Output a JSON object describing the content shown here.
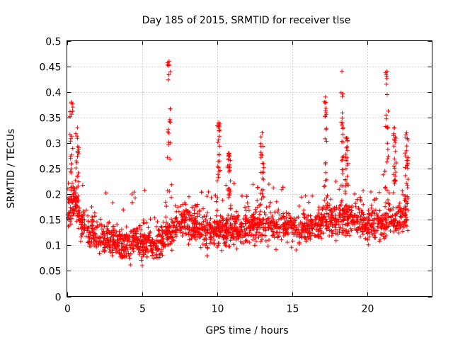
{
  "chart_data": {
    "type": "scatter",
    "title": "Day 185 of 2015, SRMTID for receiver tlse",
    "xlabel": "GPS time / hours",
    "ylabel": "SRMTID / TECUs",
    "xlim": [
      0,
      24.3
    ],
    "ylim": [
      0,
      0.5
    ],
    "x_ticks": [
      "0",
      "5",
      "10",
      "15",
      "20"
    ],
    "x_tick_values": [
      0,
      5,
      10,
      15,
      20
    ],
    "y_ticks": [
      "0",
      "0.05",
      "0.1",
      "0.15",
      "0.2",
      "0.25",
      "0.3",
      "0.35",
      "0.4",
      "0.45",
      "0.5"
    ],
    "y_tick_values": [
      0,
      0.05,
      0.1,
      0.15,
      0.2,
      0.25,
      0.3,
      0.35,
      0.4,
      0.45,
      0.5
    ],
    "grid": true,
    "marker": "+",
    "series_color": "#ff0000",
    "x_range_of_data": [
      0,
      22.7
    ],
    "baseline_values": [
      [
        0.0,
        0.16
      ],
      [
        0.5,
        0.19
      ],
      [
        1.0,
        0.14
      ],
      [
        1.5,
        0.13
      ],
      [
        2.0,
        0.12
      ],
      [
        2.5,
        0.11
      ],
      [
        3.0,
        0.11
      ],
      [
        3.5,
        0.11
      ],
      [
        4.0,
        0.1
      ],
      [
        4.5,
        0.11
      ],
      [
        5.0,
        0.1
      ],
      [
        5.5,
        0.11
      ],
      [
        6.0,
        0.1
      ],
      [
        6.5,
        0.12
      ],
      [
        7.0,
        0.13
      ],
      [
        7.5,
        0.14
      ],
      [
        8.0,
        0.15
      ],
      [
        8.5,
        0.14
      ],
      [
        9.0,
        0.13
      ],
      [
        9.5,
        0.13
      ],
      [
        10.0,
        0.13
      ],
      [
        10.5,
        0.13
      ],
      [
        11.0,
        0.13
      ],
      [
        11.5,
        0.13
      ],
      [
        12.0,
        0.14
      ],
      [
        12.5,
        0.14
      ],
      [
        13.0,
        0.14
      ],
      [
        13.5,
        0.14
      ],
      [
        14.0,
        0.14
      ],
      [
        14.5,
        0.14
      ],
      [
        15.0,
        0.14
      ],
      [
        15.5,
        0.13
      ],
      [
        16.0,
        0.13
      ],
      [
        16.5,
        0.14
      ],
      [
        17.0,
        0.15
      ],
      [
        17.5,
        0.15
      ],
      [
        18.0,
        0.15
      ],
      [
        18.5,
        0.15
      ],
      [
        19.0,
        0.15
      ],
      [
        19.5,
        0.15
      ],
      [
        20.0,
        0.14
      ],
      [
        20.5,
        0.14
      ],
      [
        21.0,
        0.14
      ],
      [
        21.5,
        0.15
      ],
      [
        22.0,
        0.15
      ],
      [
        22.5,
        0.16
      ],
      [
        22.7,
        0.17
      ]
    ],
    "spikes": [
      {
        "x": 0.3,
        "peak": 0.38
      },
      {
        "x": 0.7,
        "peak": 0.33
      },
      {
        "x": 6.8,
        "peak": 0.46
      },
      {
        "x": 10.1,
        "peak": 0.34
      },
      {
        "x": 10.8,
        "peak": 0.28
      },
      {
        "x": 13.0,
        "peak": 0.32
      },
      {
        "x": 17.2,
        "peak": 0.39
      },
      {
        "x": 18.3,
        "peak": 0.44
      },
      {
        "x": 18.6,
        "peak": 0.31
      },
      {
        "x": 21.3,
        "peak": 0.44
      },
      {
        "x": 21.8,
        "peak": 0.33
      },
      {
        "x": 22.6,
        "peak": 0.32
      }
    ]
  }
}
